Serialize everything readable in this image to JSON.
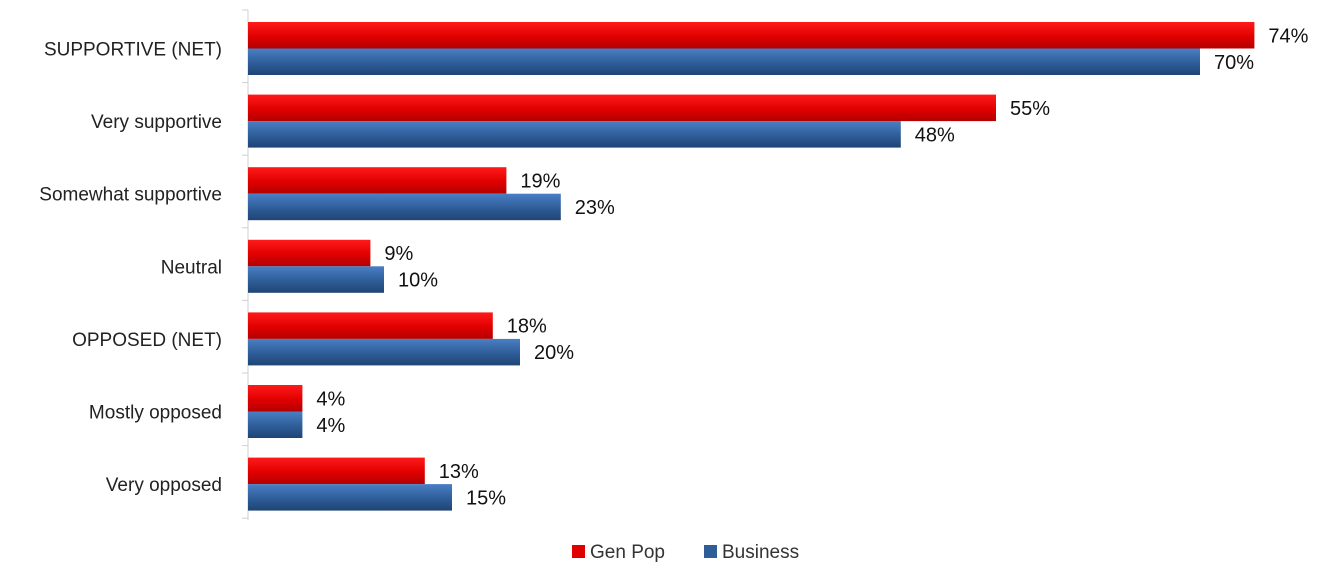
{
  "chart_data": {
    "type": "bar",
    "orientation": "horizontal",
    "categories": [
      "SUPPORTIVE (NET)",
      "Very supportive",
      "Somewhat supportive",
      "Neutral",
      "OPPOSED (NET)",
      "Mostly opposed",
      "Very opposed"
    ],
    "series": [
      {
        "name": "Gen Pop",
        "color": "#e00000",
        "values": [
          74,
          55,
          19,
          9,
          18,
          4,
          13
        ],
        "labels": [
          "74%",
          "55%",
          "19%",
          "9%",
          "18%",
          "4%",
          "13%"
        ]
      },
      {
        "name": "Business",
        "color": "#2e5d98",
        "values": [
          70,
          48,
          23,
          10,
          20,
          4,
          15
        ],
        "labels": [
          "70%",
          "48%",
          "23%",
          "10%",
          "20%",
          "4%",
          "15%"
        ]
      }
    ],
    "xlim": [
      0,
      80
    ],
    "grid": false,
    "legend_position": "bottom"
  }
}
